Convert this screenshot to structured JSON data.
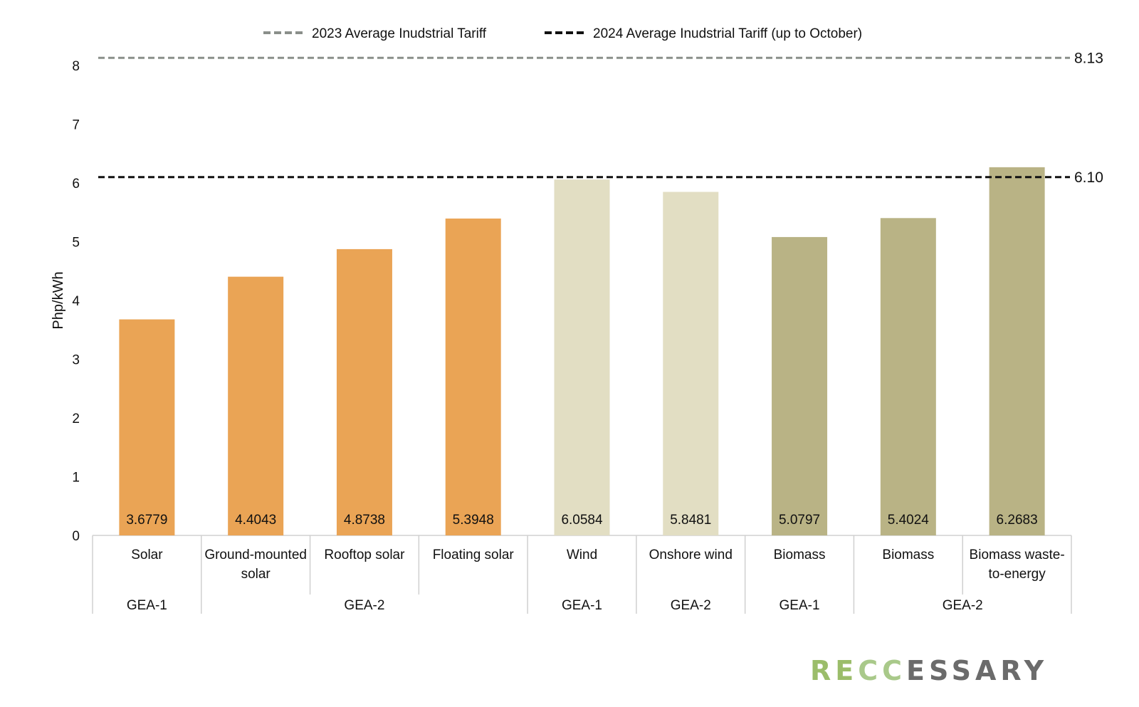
{
  "chart_data": {
    "type": "bar",
    "ylabel": "Php/kWh",
    "ylim": [
      0,
      8
    ],
    "yticks": [
      0,
      1,
      2,
      3,
      4,
      5,
      6,
      7,
      8
    ],
    "grid": false,
    "legend_position": "top-center",
    "categories": [
      "Solar",
      "Ground-mounted solar",
      "Rooftop solar",
      "Floating solar",
      "Wind",
      "Onshore wind",
      "Biomass",
      "Biomass",
      "Biomass waste-to-energy"
    ],
    "category_lines": [
      [
        "Solar"
      ],
      [
        "Ground-mounted",
        "solar"
      ],
      [
        "Rooftop solar"
      ],
      [
        "Floating solar"
      ],
      [
        "Wind"
      ],
      [
        "Onshore wind"
      ],
      [
        "Biomass"
      ],
      [
        "Biomass"
      ],
      [
        "Biomass waste-",
        "to-energy"
      ]
    ],
    "values": [
      3.6779,
      4.4043,
      4.8738,
      5.3948,
      6.0584,
      5.8481,
      5.0797,
      5.4024,
      6.2683
    ],
    "value_labels": [
      "3.6779",
      "4.4043",
      "4.8738",
      "5.3948",
      "6.0584",
      "5.8481",
      "5.0797",
      "5.4024",
      "6.2683"
    ],
    "bar_colors": [
      "#eaa455",
      "#eaa455",
      "#eaa455",
      "#eaa455",
      "#e2dec3",
      "#e2dec3",
      "#b9b385",
      "#b9b385",
      "#b9b385"
    ],
    "groups": [
      {
        "label": "GEA-1",
        "start": 0,
        "end": 0
      },
      {
        "label": "GEA-2",
        "start": 1,
        "end": 3
      },
      {
        "label": "GEA-1",
        "start": 4,
        "end": 4
      },
      {
        "label": "GEA-2",
        "start": 5,
        "end": 5
      },
      {
        "label": "GEA-1",
        "start": 6,
        "end": 6
      },
      {
        "label": "GEA-2",
        "start": 7,
        "end": 8
      }
    ],
    "reference_lines": [
      {
        "name": "2023 Average Inudstrial Tariff",
        "value": 8.13,
        "label": "8.13",
        "color": "#8a8f8a"
      },
      {
        "name": "2024 Average Inudstrial Tariff (up to October)",
        "value": 6.1,
        "label": "6.10",
        "color": "#111111"
      }
    ]
  },
  "logo": {
    "parts": [
      {
        "text": "R",
        "color": "#9bbd6a"
      },
      {
        "text": "E",
        "color": "#9bbd6a"
      },
      {
        "text": "CC",
        "color": "#a9c98a"
      },
      {
        "text": "ESSARY",
        "color": "#6b6b6b"
      }
    ]
  }
}
